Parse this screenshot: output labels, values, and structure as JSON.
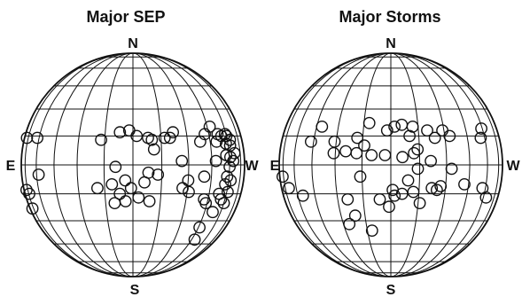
{
  "chart_data": [
    {
      "type": "scatter",
      "title": "Major SEP",
      "direction_labels": {
        "north": "N",
        "south": "S",
        "east": "E",
        "west": "W"
      },
      "grid": true,
      "marker": "open-circle",
      "x_unit": "degrees longitude (E negative, W positive)",
      "y_unit": "degrees latitude",
      "points": [
        [
          -78,
          14
        ],
        [
          -62,
          14
        ],
        [
          -78,
          -13
        ],
        [
          -74,
          -15
        ],
        [
          -78,
          -23
        ],
        [
          -58,
          -5
        ],
        [
          -17,
          13
        ],
        [
          -7,
          17
        ],
        [
          -2,
          18
        ],
        [
          2,
          15
        ],
        [
          8,
          14
        ],
        [
          10,
          13
        ],
        [
          11,
          8
        ],
        [
          17,
          14
        ],
        [
          20,
          14
        ],
        [
          22,
          17
        ],
        [
          13,
          -5
        ],
        [
          26,
          2
        ],
        [
          38,
          12
        ],
        [
          42,
          16
        ],
        [
          47,
          20
        ],
        [
          52,
          16
        ],
        [
          55,
          15
        ],
        [
          59,
          16
        ],
        [
          60,
          15
        ],
        [
          50,
          12
        ],
        [
          58,
          11
        ],
        [
          63,
          13
        ],
        [
          62,
          10
        ],
        [
          48,
          2
        ],
        [
          57,
          5
        ],
        [
          61,
          4
        ],
        [
          60,
          -1
        ],
        [
          66,
          6
        ],
        [
          64,
          2
        ],
        [
          58,
          -6
        ],
        [
          62,
          -8
        ],
        [
          57,
          -10
        ],
        [
          61,
          -14
        ],
        [
          56,
          -18
        ],
        [
          60,
          -20
        ],
        [
          53,
          -15
        ],
        [
          52,
          -25
        ],
        [
          46,
          -34
        ],
        [
          48,
          -42
        ],
        [
          40,
          -6
        ],
        [
          42,
          -18
        ],
        [
          44,
          -20
        ],
        [
          -19,
          -12
        ],
        [
          -11,
          -10
        ],
        [
          -7,
          -15
        ],
        [
          -4,
          -8
        ],
        [
          -1,
          -12
        ],
        [
          -4,
          -19
        ],
        [
          3,
          -17
        ],
        [
          6,
          -9
        ],
        [
          9,
          -19
        ],
        [
          -10,
          -20
        ],
        [
          -9,
          -1
        ],
        [
          8,
          -4
        ],
        [
          27,
          -12
        ],
        [
          31,
          -14
        ],
        [
          30,
          -8
        ]
      ]
    },
    {
      "type": "scatter",
      "title": "Major Storms",
      "direction_labels": {
        "north": "N",
        "south": "S",
        "east": "E",
        "west": "W"
      },
      "grid": true,
      "marker": "open-circle",
      "x_unit": "degrees longitude (E negative, W positive)",
      "y_unit": "degrees latitude",
      "points": [
        [
          -77,
          -6
        ],
        [
          -69,
          -12
        ],
        [
          -55,
          -16
        ],
        [
          -47,
          12
        ],
        [
          -41,
          20
        ],
        [
          -31,
          12
        ],
        [
          -18,
          14
        ],
        [
          -14,
          10
        ],
        [
          -12,
          22
        ],
        [
          -10,
          5
        ],
        [
          -2,
          18
        ],
        [
          2,
          20
        ],
        [
          6,
          21
        ],
        [
          10,
          15
        ],
        [
          12,
          20
        ],
        [
          14,
          8
        ],
        [
          20,
          18
        ],
        [
          24,
          14
        ],
        [
          29,
          18
        ],
        [
          33,
          15
        ],
        [
          -31,
          6
        ],
        [
          -24,
          7
        ],
        [
          -18,
          6
        ],
        [
          -3,
          5
        ],
        [
          6,
          4
        ],
        [
          12,
          6
        ],
        [
          14,
          -2
        ],
        [
          21,
          2
        ],
        [
          -16,
          -6
        ],
        [
          -24,
          -18
        ],
        [
          -21,
          -27
        ],
        [
          -6,
          -18
        ],
        [
          1,
          -13
        ],
        [
          2,
          -16
        ],
        [
          6,
          -15
        ],
        [
          12,
          -14
        ],
        [
          16,
          -20
        ],
        [
          22,
          -12
        ],
        [
          25,
          -13
        ],
        [
          27,
          -11
        ],
        [
          33,
          -2
        ],
        [
          42,
          -10
        ],
        [
          9,
          -8
        ],
        [
          -1,
          -22
        ],
        [
          -26,
          -32
        ],
        [
          -12,
          -36
        ],
        [
          56,
          14
        ],
        [
          59,
          19
        ],
        [
          57,
          -12
        ],
        [
          63,
          -17
        ]
      ]
    }
  ]
}
